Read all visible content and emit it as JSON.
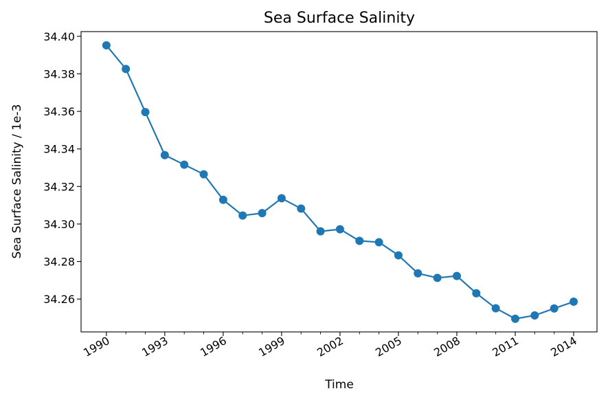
{
  "chart_data": {
    "type": "line",
    "title": "Sea Surface Salinity",
    "xlabel": "Time",
    "ylabel": "Sea Surface Salinity / 1e-3",
    "x": [
      1990,
      1991,
      1992,
      1993,
      1994,
      1995,
      1996,
      1997,
      1998,
      1999,
      2000,
      2001,
      2002,
      2003,
      2004,
      2005,
      2006,
      2007,
      2008,
      2009,
      2010,
      2011,
      2012,
      2013,
      2014
    ],
    "series": [
      {
        "values": [
          34.3952,
          34.3826,
          34.3596,
          34.3367,
          34.3316,
          34.3265,
          34.3129,
          34.3045,
          34.3058,
          34.3137,
          34.3082,
          34.2961,
          34.2972,
          34.291,
          34.2903,
          34.2833,
          34.2737,
          34.2713,
          34.2723,
          34.2631,
          34.2551,
          34.2495,
          34.2513,
          34.255,
          34.2586
        ],
        "color": "#1f77b4"
      }
    ],
    "x_ticks": [
      "1990",
      "1993",
      "1996",
      "1999",
      "2002",
      "2005",
      "2008",
      "2011",
      "2014"
    ],
    "x_tick_minor_years": [
      1991,
      1992,
      1994,
      1995,
      1997,
      1998,
      2000,
      2001,
      2003,
      2004,
      2006,
      2007,
      2009,
      2010,
      2012,
      2013
    ],
    "y_ticks": [
      "34.26",
      "34.28",
      "34.30",
      "34.32",
      "34.34",
      "34.36",
      "34.38",
      "34.40"
    ],
    "xlim": [
      1988.7,
      2015.2
    ],
    "ylim": [
      34.2425,
      34.4025
    ],
    "grid": false,
    "legend": "none",
    "marker": "circle"
  }
}
